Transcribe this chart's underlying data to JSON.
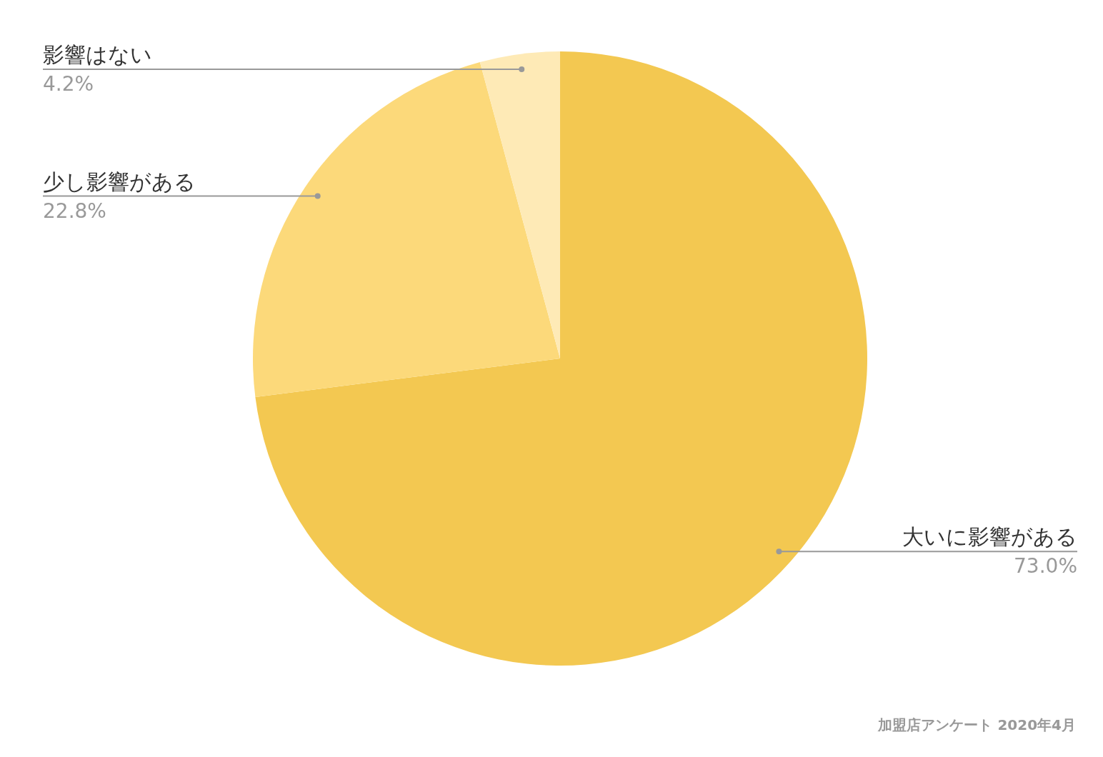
{
  "chart_data": {
    "type": "pie",
    "categories": [
      "大いに影響がある",
      "少し影響がある",
      "影響はない"
    ],
    "values": [
      73.0,
      22.8,
      4.2
    ],
    "colors": [
      "#f3c851",
      "#fcd97a",
      "#feeab6"
    ],
    "value_labels": [
      "73.0%",
      "22.8%",
      "4.2%"
    ],
    "annotations": [
      "加盟店アンケート 2020年4月"
    ]
  }
}
